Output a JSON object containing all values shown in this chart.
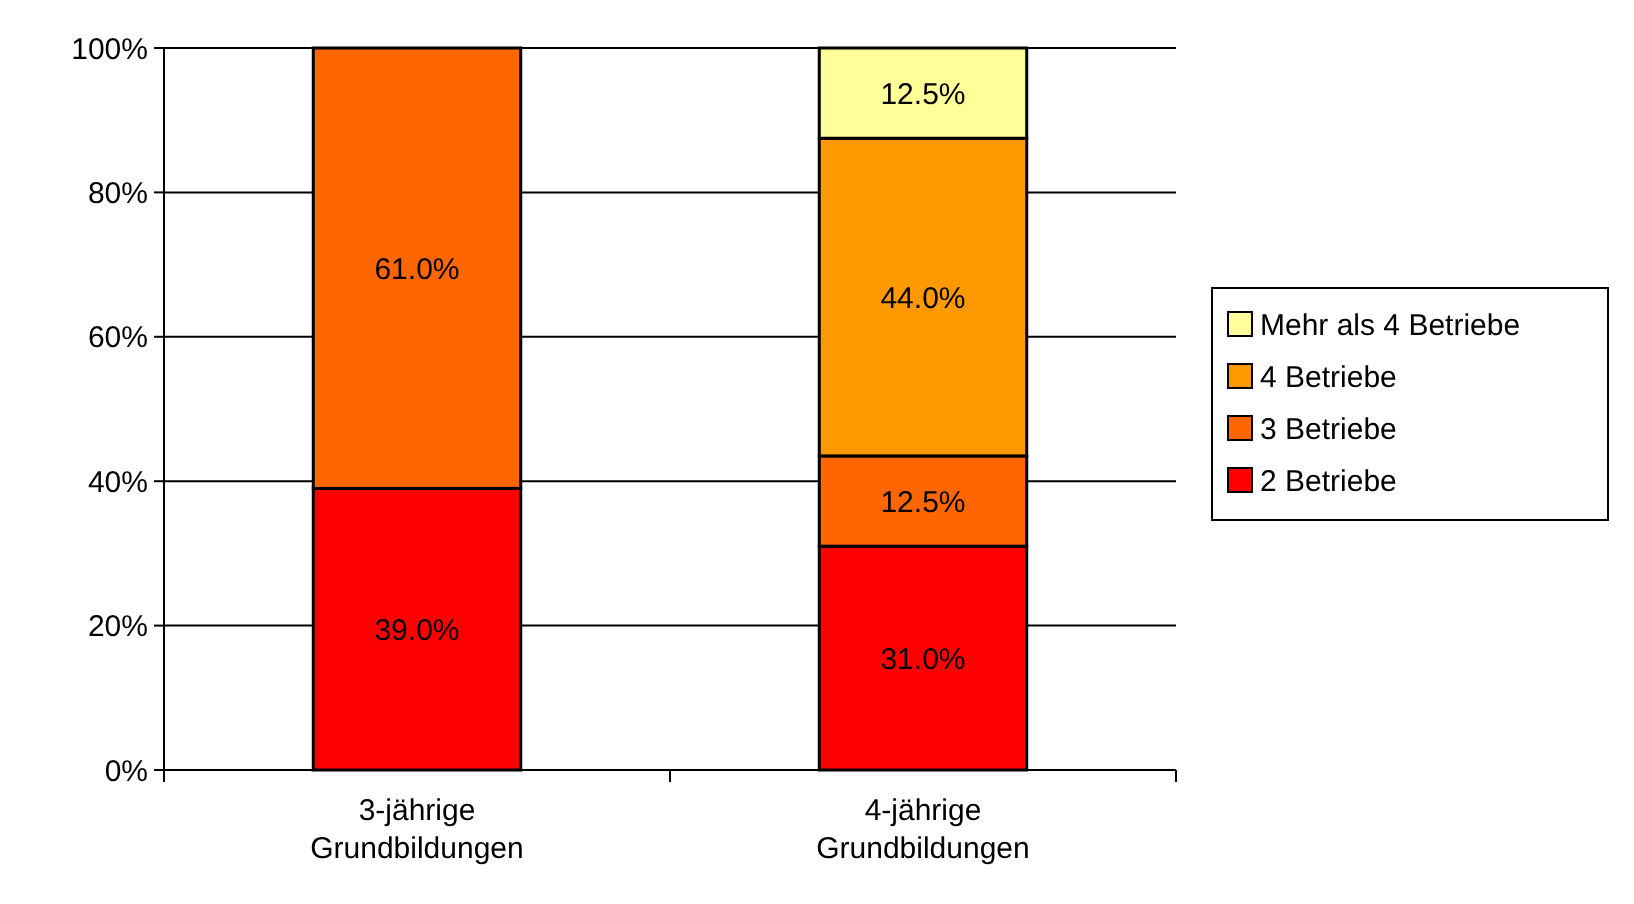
{
  "chart_data": {
    "type": "bar",
    "stacked": true,
    "categories": [
      "3-jährige Grundbildungen",
      "4-jährige Grundbildungen"
    ],
    "series": [
      {
        "name": "2 Betriebe",
        "color": "#ff0000",
        "values": [
          39,
          31
        ],
        "value_labels": [
          "39.0%",
          "31.0%"
        ]
      },
      {
        "name": "3 Betriebe",
        "color": "#ff6600",
        "values": [
          61,
          12.5
        ],
        "value_labels": [
          "61.0%",
          "12.5%"
        ]
      },
      {
        "name": "4 Betriebe",
        "color": "#ff9900",
        "values": [
          null,
          44
        ],
        "value_labels": [
          null,
          "44.0%"
        ]
      },
      {
        "name": "Mehr als 4 Betriebe",
        "color": "#ffff99",
        "values": [
          null,
          12.5
        ],
        "value_labels": [
          null,
          "12.5%"
        ]
      }
    ],
    "ylim": [
      0,
      100
    ],
    "yticks": [
      {
        "value": 0,
        "label": "0%"
      },
      {
        "value": 20,
        "label": "20%"
      },
      {
        "value": 40,
        "label": "40%"
      },
      {
        "value": 60,
        "label": "60%"
      },
      {
        "value": 80,
        "label": "80%"
      },
      {
        "value": 100,
        "label": "100%"
      }
    ],
    "grid": "y",
    "legend": "right"
  }
}
